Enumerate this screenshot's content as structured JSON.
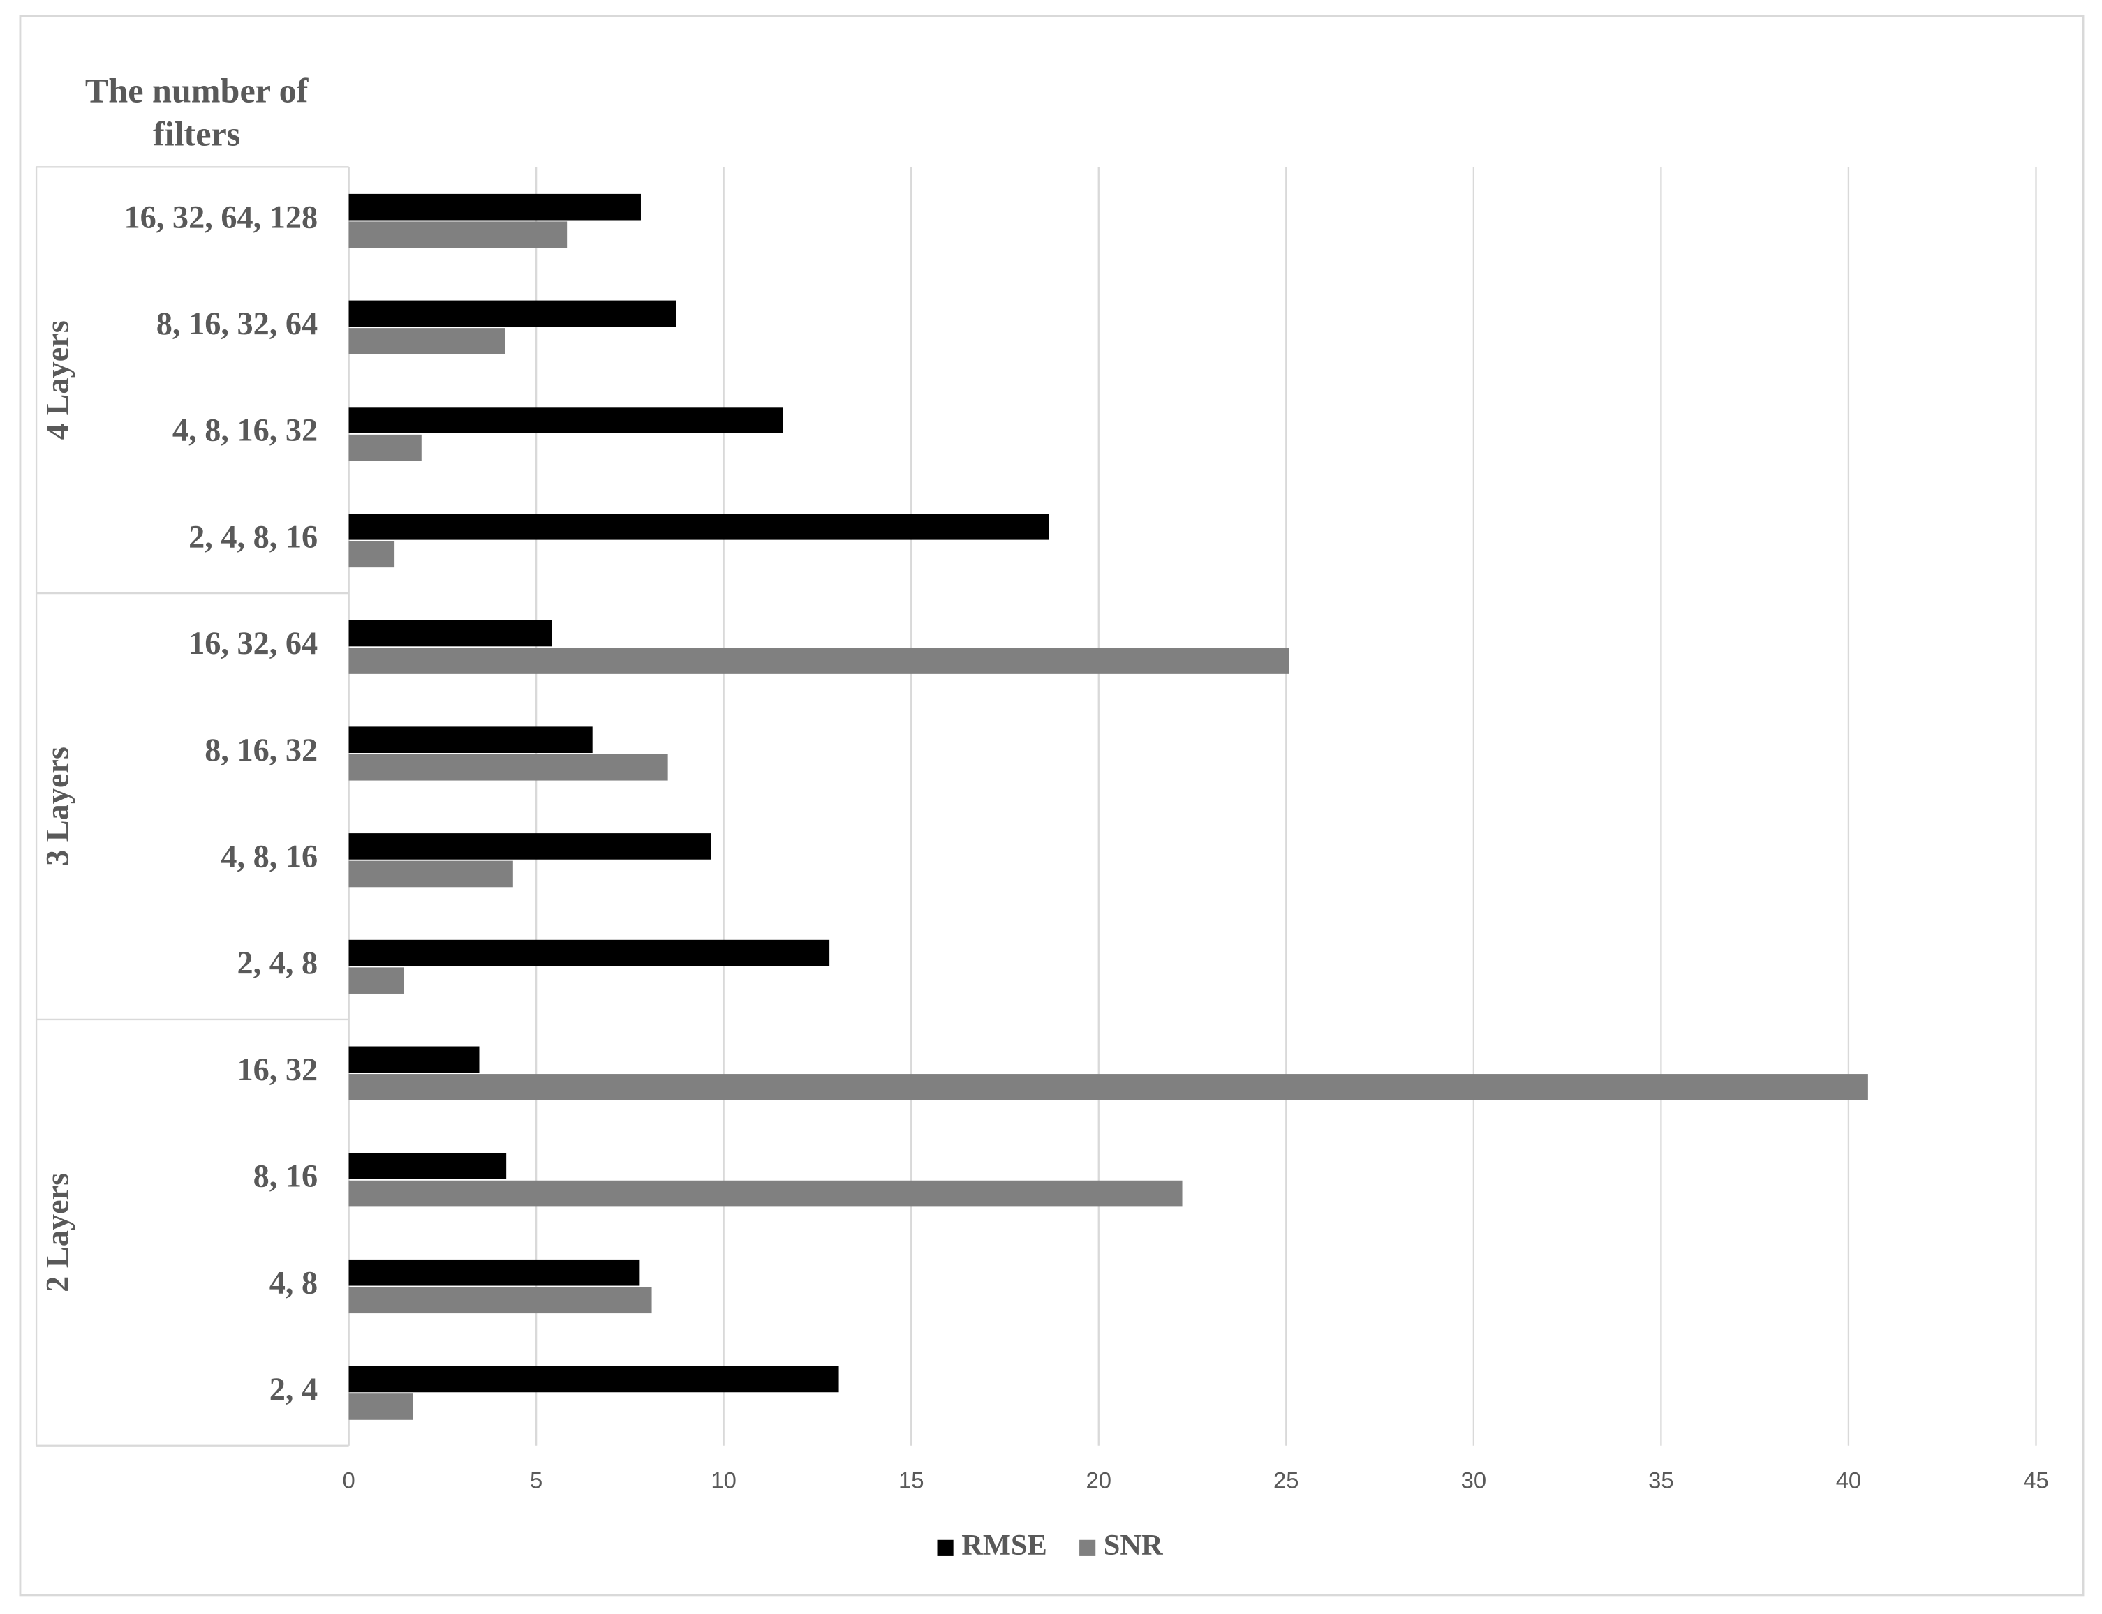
{
  "chart_data": {
    "type": "bar",
    "orientation": "horizontal",
    "title": "The number of filters",
    "groups": [
      {
        "name": "2 Layers",
        "categories": [
          "2, 4",
          "4, 8",
          "8, 16",
          "16, 32"
        ]
      },
      {
        "name": "3 Layers",
        "categories": [
          "2, 4, 8",
          "4, 8, 16",
          "8, 16, 32",
          "16, 32, 64"
        ]
      },
      {
        "name": "4 Layers",
        "categories": [
          "2, 4, 8, 16",
          "4, 8, 16, 32",
          "8, 16, 32, 64",
          "16, 32, 64, 128"
        ]
      }
    ],
    "series": [
      {
        "name": "RMSE",
        "color": "#000000",
        "values": [
          13.07,
          7.76,
          4.2,
          3.48,
          12.82,
          9.66,
          6.5,
          5.42,
          18.68,
          11.57,
          8.73,
          7.79
        ]
      },
      {
        "name": "SNR",
        "color": "#808080",
        "values": [
          1.72,
          8.08,
          22.23,
          40.52,
          1.47,
          4.38,
          8.51,
          25.07,
          1.22,
          1.94,
          4.17,
          5.82
        ]
      }
    ],
    "xlim": [
      0,
      45
    ],
    "xticks": [
      0,
      5,
      10,
      15,
      20,
      25,
      30,
      35,
      40,
      45
    ],
    "grid": true,
    "legend": "bottom"
  }
}
